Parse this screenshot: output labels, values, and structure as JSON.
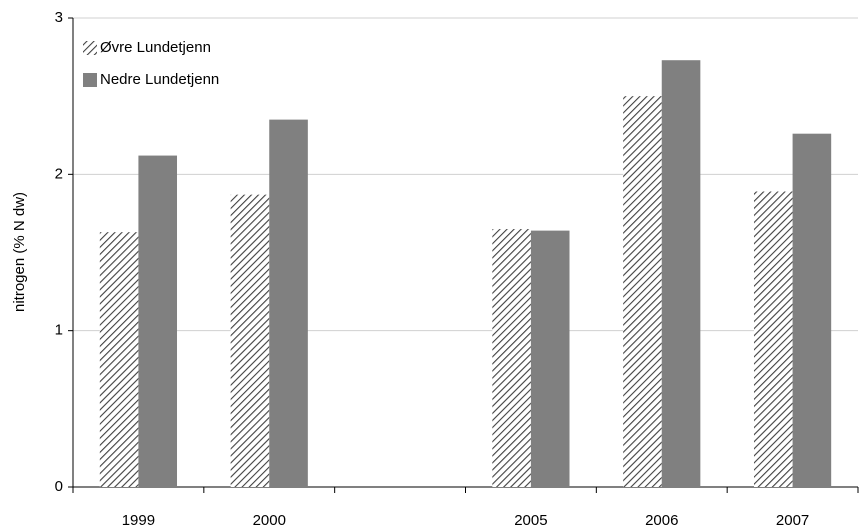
{
  "chart_data": {
    "type": "bar",
    "y_label": "nitrogen (% N dw)",
    "categories": [
      "1999",
      "2000",
      null,
      "2005",
      "2006",
      "2007"
    ],
    "series": [
      {
        "name": "Øvre Lundetjenn",
        "color": "#404040",
        "hatch": true,
        "values": [
          1.63,
          1.87,
          null,
          1.65,
          2.5,
          1.89
        ]
      },
      {
        "name": "Nedre Lundetjenn",
        "color": "#808080",
        "hatch": false,
        "values": [
          2.12,
          2.35,
          null,
          1.64,
          2.73,
          2.26
        ]
      }
    ],
    "ylim": [
      0,
      3
    ],
    "yticks": [
      0,
      1,
      2,
      3
    ],
    "grid": true,
    "legend": "top-left"
  }
}
